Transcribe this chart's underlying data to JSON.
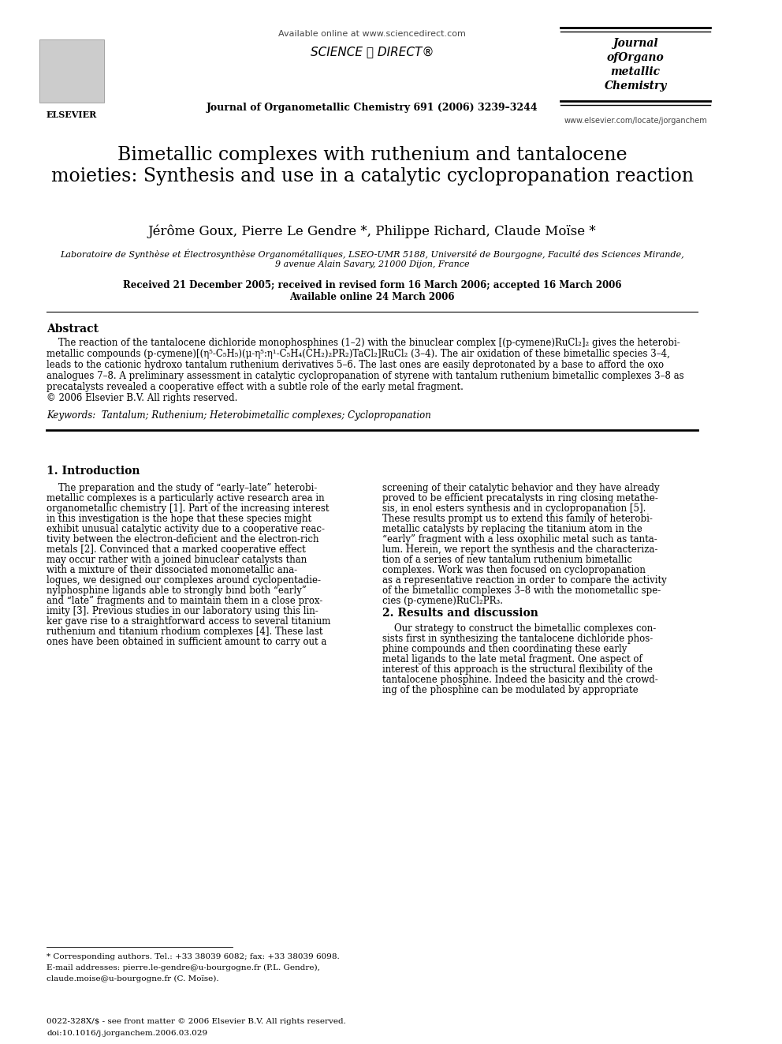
{
  "background_color": "#ffffff",
  "header": {
    "available_online": "Available online at www.sciencedirect.com",
    "sciencedirect": "SCIENCE ⓐ DIRECT®",
    "journal_line": "Journal of Organometallic Chemistry 691 (2006) 3239–3244",
    "journal_name_lines": [
      "Journal",
      "ofOrgano",
      "metallic",
      "Chemistry"
    ],
    "website": "www.elsevier.com/locate/jorganchem",
    "elsevier": "ELSEVIER"
  },
  "title": "Bimetallic complexes with ruthenium and tantalocene\nmoieties: Synthesis and use in a catalytic cyclopropanation reaction",
  "authors": "Jérôme Goux, Pierre Le Gendre *, Philippe Richard, Claude Moïse *",
  "affiliation_line1": "Laboratoire de Synthèse et Électrosynthèse Organométalliques, LSEO-UMR 5188, Université de Bourgogne, Faculté des Sciences Mirande,",
  "affiliation_line2": "9 avenue Alain Savary, 21000 Dijon, France",
  "received": "Received 21 December 2005; received in revised form 16 March 2006; accepted 16 March 2006",
  "online": "Available online 24 March 2006",
  "abstract_title": "Abstract",
  "abstract_text": "    The reaction of the tantalocene dichloride monophosphines (1–2) with the binuclear complex [(p-cymene)RuCl₂]₂ gives the heterobi-metallic compounds (p-cymene)[(η⁵-C₅H₅)(μ-η⁵:η¹-C₅H₄(CH₂)₂PR₂)TaCl₂]RuCl₂ (3–4). The air oxidation of these bimetallic species 3–4, leads to the cationic hydroxo tantalum ruthenium derivatives 5–6. The last ones are easily deprotonated by a base to afford the oxo analogues 7–8. A preliminary assessment in catalytic cyclopropanation of styrene with tantalum ruthenium bimetallic complexes 3–8 as precatalysts revealed a cooperative effect with a subtle role of the early metal fragment.\n© 2006 Elsevier B.V. All rights reserved.",
  "keywords": "Keywords:  Tantalum; Ruthenium; Heterobimetallic complexes; Cyclopropanation",
  "section1_title": "1. Introduction",
  "section1_col1": "    The preparation and the study of “early–late” heterobi-metallic complexes is a particularly active research area in organometallic chemistry [1]. Part of the increasing interest in this investigation is the hope that these species might exhibit unusual catalytic activity due to a cooperative reac-tivity between the electron-deficient and the electron-rich metals [2]. Convinced that a marked cooperative effect may occur rather with a joined binuclear catalysts than with a mixture of their dissociated monometallic ana-logues, we designed our complexes around cyclopentadie-nylphosphine ligands able to strongly bind both “early” and “late” fragments and to maintain them in a close prox-imity [3]. Previous studies in our laboratory using this lin-ker gave rise to a straightforward access to several titanium ruthenium and titanium rhodium complexes [4]. These last ones have been obtained in sufficient amount to carry out a",
  "section1_col2": "screening of their catalytic behavior and they have already proved to be efficient precatalysts in ring closing metathe-sis, in enol esters synthesis and in cyclopropanation [5]. These results prompt us to extend this family of heterobi-metallic catalysts by replacing the titanium atom in the “early” fragment with a less oxophilic metal such as tanta-lum. Herein, we report the synthesis and the characteriza-tion of a series of new tantalum ruthenium bimetallic complexes. Work was then focused on cyclopropanation as a representative reaction in order to compare the activity of the bimetallic complexes 3–8 with the monometallic spe-cies (p-cymene)RuCl₂PR₃.",
  "section2_title": "2. Results and discussion",
  "section2_col2": "    Our strategy to construct the bimetallic complexes con-sists first in synthesizing the tantalocene dichloride phos-phine compounds and then coordinating these early metal ligands to the late metal fragment. One aspect of interest of this approach is the structural flexibility of the tantalocene phosphine. Indeed the basicity and the crowd-ing of the phosphine can be modulated by appropriate",
  "footnote_corresponding": "* Corresponding authors. Tel.: +33 38039 6082; fax: +33 38039 6098.",
  "footnote_email": "E-mail addresses: pierre.le-gendre@u-bourgogne.fr (P.L. Gendre),",
  "footnote_email2": "claude.moise@u-bourgogne.fr (C. Moïse).",
  "footer_left": "0022-328X/$ - see front matter © 2006 Elsevier B.V. All rights reserved.",
  "footer_doi": "doi:10.1016/j.jorganchem.2006.03.029"
}
